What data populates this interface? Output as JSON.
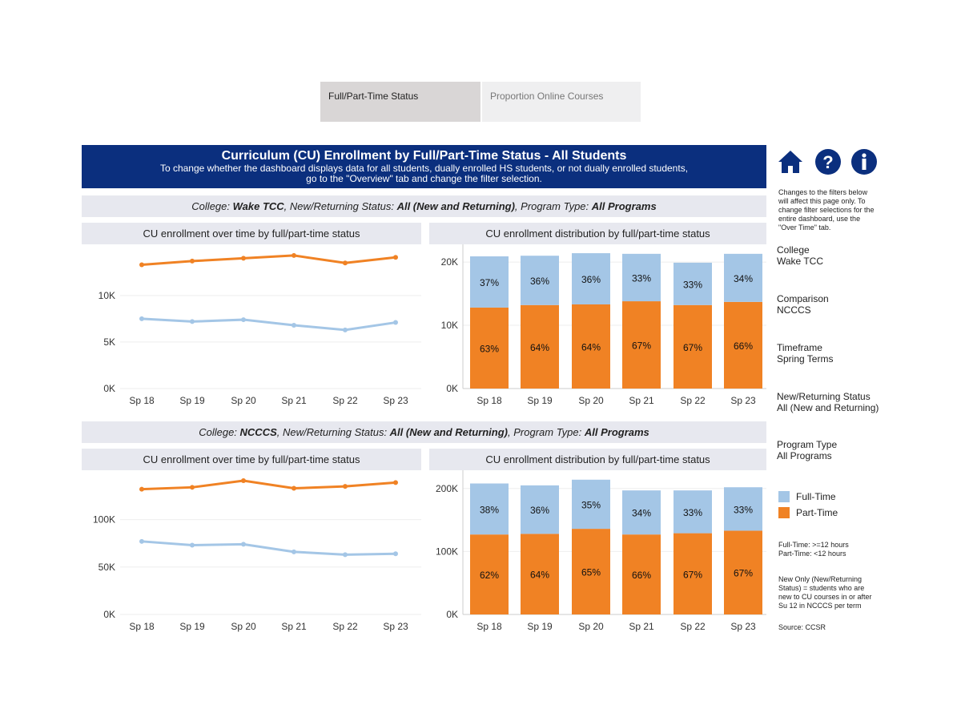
{
  "tabs": [
    {
      "label": "Full/Part-Time Status",
      "selected": true
    },
    {
      "label": "Proportion Online Courses",
      "selected": false
    }
  ],
  "header": {
    "title": "Curriculum (CU) Enrollment by Full/Part-Time Status - All Students",
    "subtitle_line1": "To change whether the dashboard displays data for all students, dually enrolled HS students, or not dually enrolled students,",
    "subtitle_line2": "go to the \"Overview\" tab and change the filter selection."
  },
  "icons": [
    "home-icon",
    "help-icon",
    "info-icon"
  ],
  "colors": {
    "navy": "#0b2f7e",
    "full_time": "#a4c6e6",
    "part_time": "#f08224"
  },
  "sections": [
    {
      "filter": {
        "college_label": "College: ",
        "college": "Wake TCC",
        "status_label": ", New/Returning Status: ",
        "status": "All (New and Returning)",
        "program_label": ", Program Type: ",
        "program": "All Programs"
      },
      "line_title": "CU enrollment over time by full/part-time status",
      "bar_title": "CU enrollment distribution by full/part-time status"
    },
    {
      "filter": {
        "college_label": "College: ",
        "college": "NCCCS",
        "status_label": ", New/Returning Status: ",
        "status": "All (New and Returning)",
        "program_label": ", Program Type: ",
        "program": "All Programs"
      },
      "line_title": "CU enrollment over time by full/part-time status",
      "bar_title": "CU enrollment distribution by full/part-time status"
    }
  ],
  "chart_data": [
    {
      "type": "line",
      "categories": [
        "Sp 18",
        "Sp 19",
        "Sp 20",
        "Sp 21",
        "Sp 22",
        "Sp 23"
      ],
      "ylim": [
        0,
        15500
      ],
      "yticks": [
        0,
        5000,
        10000
      ],
      "ytick_labels": [
        "0K",
        "5K",
        "10K"
      ],
      "series": [
        {
          "name": "Full-Time",
          "values": [
            7500,
            7200,
            7400,
            6800,
            6300,
            7100
          ]
        },
        {
          "name": "Part-Time",
          "values": [
            13300,
            13700,
            14000,
            14300,
            13500,
            14100
          ]
        }
      ]
    },
    {
      "type": "bar",
      "stacked": true,
      "categories": [
        "Sp 18",
        "Sp 19",
        "Sp 20",
        "Sp 21",
        "Sp 22",
        "Sp 23"
      ],
      "ylim": [
        0,
        22800
      ],
      "yticks": [
        0,
        10000,
        20000
      ],
      "ytick_labels": [
        "0K",
        "10K",
        "20K"
      ],
      "series": [
        {
          "name": "Part-Time",
          "values": [
            12800,
            13200,
            13300,
            13800,
            13200,
            13700
          ],
          "labels": [
            "63%",
            "64%",
            "64%",
            "67%",
            "67%",
            "66%"
          ]
        },
        {
          "name": "Full-Time",
          "values": [
            8100,
            7800,
            8100,
            7500,
            6700,
            7600
          ],
          "labels": [
            "37%",
            "36%",
            "36%",
            "33%",
            "33%",
            "34%"
          ]
        }
      ]
    },
    {
      "type": "line",
      "categories": [
        "Sp 18",
        "Sp 19",
        "Sp 20",
        "Sp 21",
        "Sp 22",
        "Sp 23"
      ],
      "ylim": [
        0,
        152000
      ],
      "yticks": [
        0,
        50000,
        100000
      ],
      "ytick_labels": [
        "0K",
        "50K",
        "100K"
      ],
      "series": [
        {
          "name": "Full-Time",
          "values": [
            77000,
            73000,
            74000,
            66000,
            63000,
            64000
          ]
        },
        {
          "name": "Part-Time",
          "values": [
            132000,
            134000,
            141000,
            133000,
            135000,
            139000
          ]
        }
      ]
    },
    {
      "type": "bar",
      "stacked": true,
      "categories": [
        "Sp 18",
        "Sp 19",
        "Sp 20",
        "Sp 21",
        "Sp 22",
        "Sp 23"
      ],
      "ylim": [
        0,
        229000
      ],
      "yticks": [
        0,
        100000,
        200000
      ],
      "ytick_labels": [
        "0K",
        "100K",
        "200K"
      ],
      "series": [
        {
          "name": "Part-Time",
          "values": [
            127000,
            128000,
            136000,
            127000,
            129000,
            133000
          ],
          "labels": [
            "62%",
            "64%",
            "65%",
            "66%",
            "67%",
            "67%"
          ]
        },
        {
          "name": "Full-Time",
          "values": [
            81000,
            77000,
            78000,
            70000,
            68000,
            69000
          ],
          "labels": [
            "38%",
            "36%",
            "35%",
            "34%",
            "33%",
            "33%"
          ]
        }
      ]
    }
  ],
  "sidebar": {
    "note": "Changes to the filters below will affect this page only. To change filter selections for the entire dashboard, use the \"Over Time\" tab.",
    "filters": [
      {
        "label": "College",
        "value": "Wake TCC"
      },
      {
        "label": "Comparison",
        "value": "NCCCS"
      },
      {
        "label": "Timeframe",
        "value": "Spring Terms"
      },
      {
        "label": "New/Returning Status",
        "value": "All (New and Returning)"
      },
      {
        "label": "Program Type",
        "value": "All Programs"
      }
    ],
    "legend": [
      "Full-Time",
      "Part-Time"
    ],
    "def1": "Full-Time: >=12 hours",
    "def2": "Part-Time: <12 hours",
    "new_note": "New Only (New/Returning Status) = students who are new to CU courses in or after Su 12 in NCCCS per term",
    "source": "Source: CCSR"
  }
}
